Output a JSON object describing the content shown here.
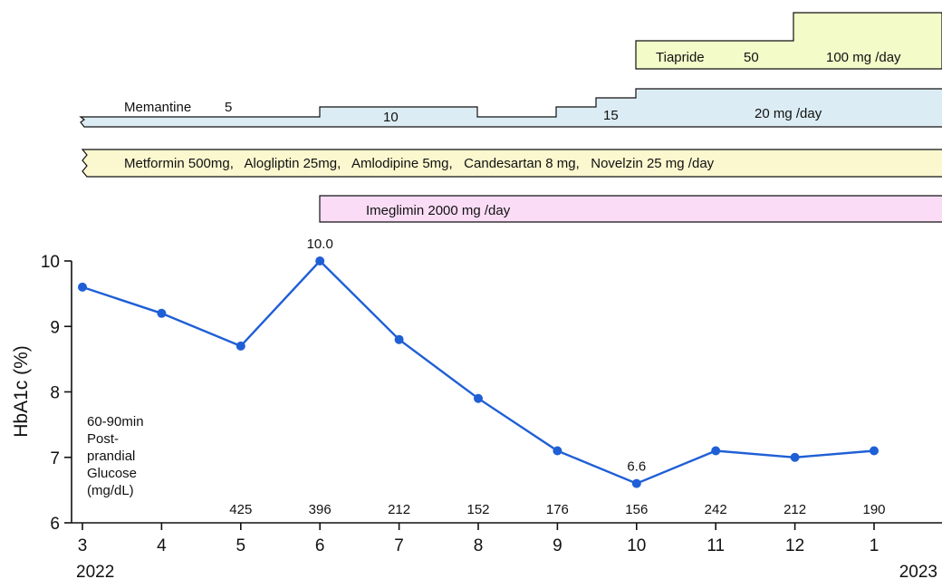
{
  "chart_data": {
    "type": "line",
    "ylabel": "HbA1c (%)",
    "ylim": [
      6,
      10
    ],
    "y_ticks": [
      "6",
      "7",
      "8",
      "9",
      "10"
    ],
    "x_ticks": [
      "3",
      "4",
      "5",
      "6",
      "7",
      "8",
      "9",
      "10",
      "11",
      "12",
      "1"
    ],
    "year_start": "2022",
    "year_end": "2023",
    "grid": false,
    "series": [
      {
        "values": [
          9.6,
          9.2,
          8.7,
          10.0,
          8.8,
          7.9,
          7.1,
          6.6,
          7.1,
          7.0,
          7.1
        ],
        "color": "#1f5fd6"
      }
    ],
    "point_labels": [
      {
        "index": 3,
        "text": "10.0"
      },
      {
        "index": 7,
        "text": "6.6"
      }
    ],
    "glucose": {
      "label_lines": [
        "60-90min",
        "Post-",
        "prandial",
        "Glucose",
        "(mg/dL)"
      ],
      "values": [
        {
          "index": 2,
          "text": "425"
        },
        {
          "index": 3,
          "text": "396"
        },
        {
          "index": 4,
          "text": "212"
        },
        {
          "index": 5,
          "text": "152"
        },
        {
          "index": 6,
          "text": "176"
        },
        {
          "index": 7,
          "text": "156"
        },
        {
          "index": 8,
          "text": "242"
        },
        {
          "index": 9,
          "text": "212"
        },
        {
          "index": 10,
          "text": "190"
        }
      ]
    },
    "medications": {
      "tiapride": {
        "start_index": 7,
        "step_index": 9,
        "doses": [
          "50",
          "100 mg /day"
        ],
        "name": "Tiapride",
        "color": "#f3fbc9"
      },
      "memantine": {
        "name": "Memantine",
        "doses": [
          "5",
          "10",
          "15",
          "20 mg /day"
        ],
        "color": "#dcecf4"
      },
      "combo": {
        "text": "Metformin 500mg,   Alogliptin 25mg,   Amlodipine 5mg,   Candesartan 8 mg,   Novelzin 25 mg /day",
        "color": "#fbf8cf"
      },
      "imeglimin": {
        "start_index": 3,
        "text": "Imeglimin 2000 mg /day",
        "color": "#fbdcf6"
      }
    }
  }
}
